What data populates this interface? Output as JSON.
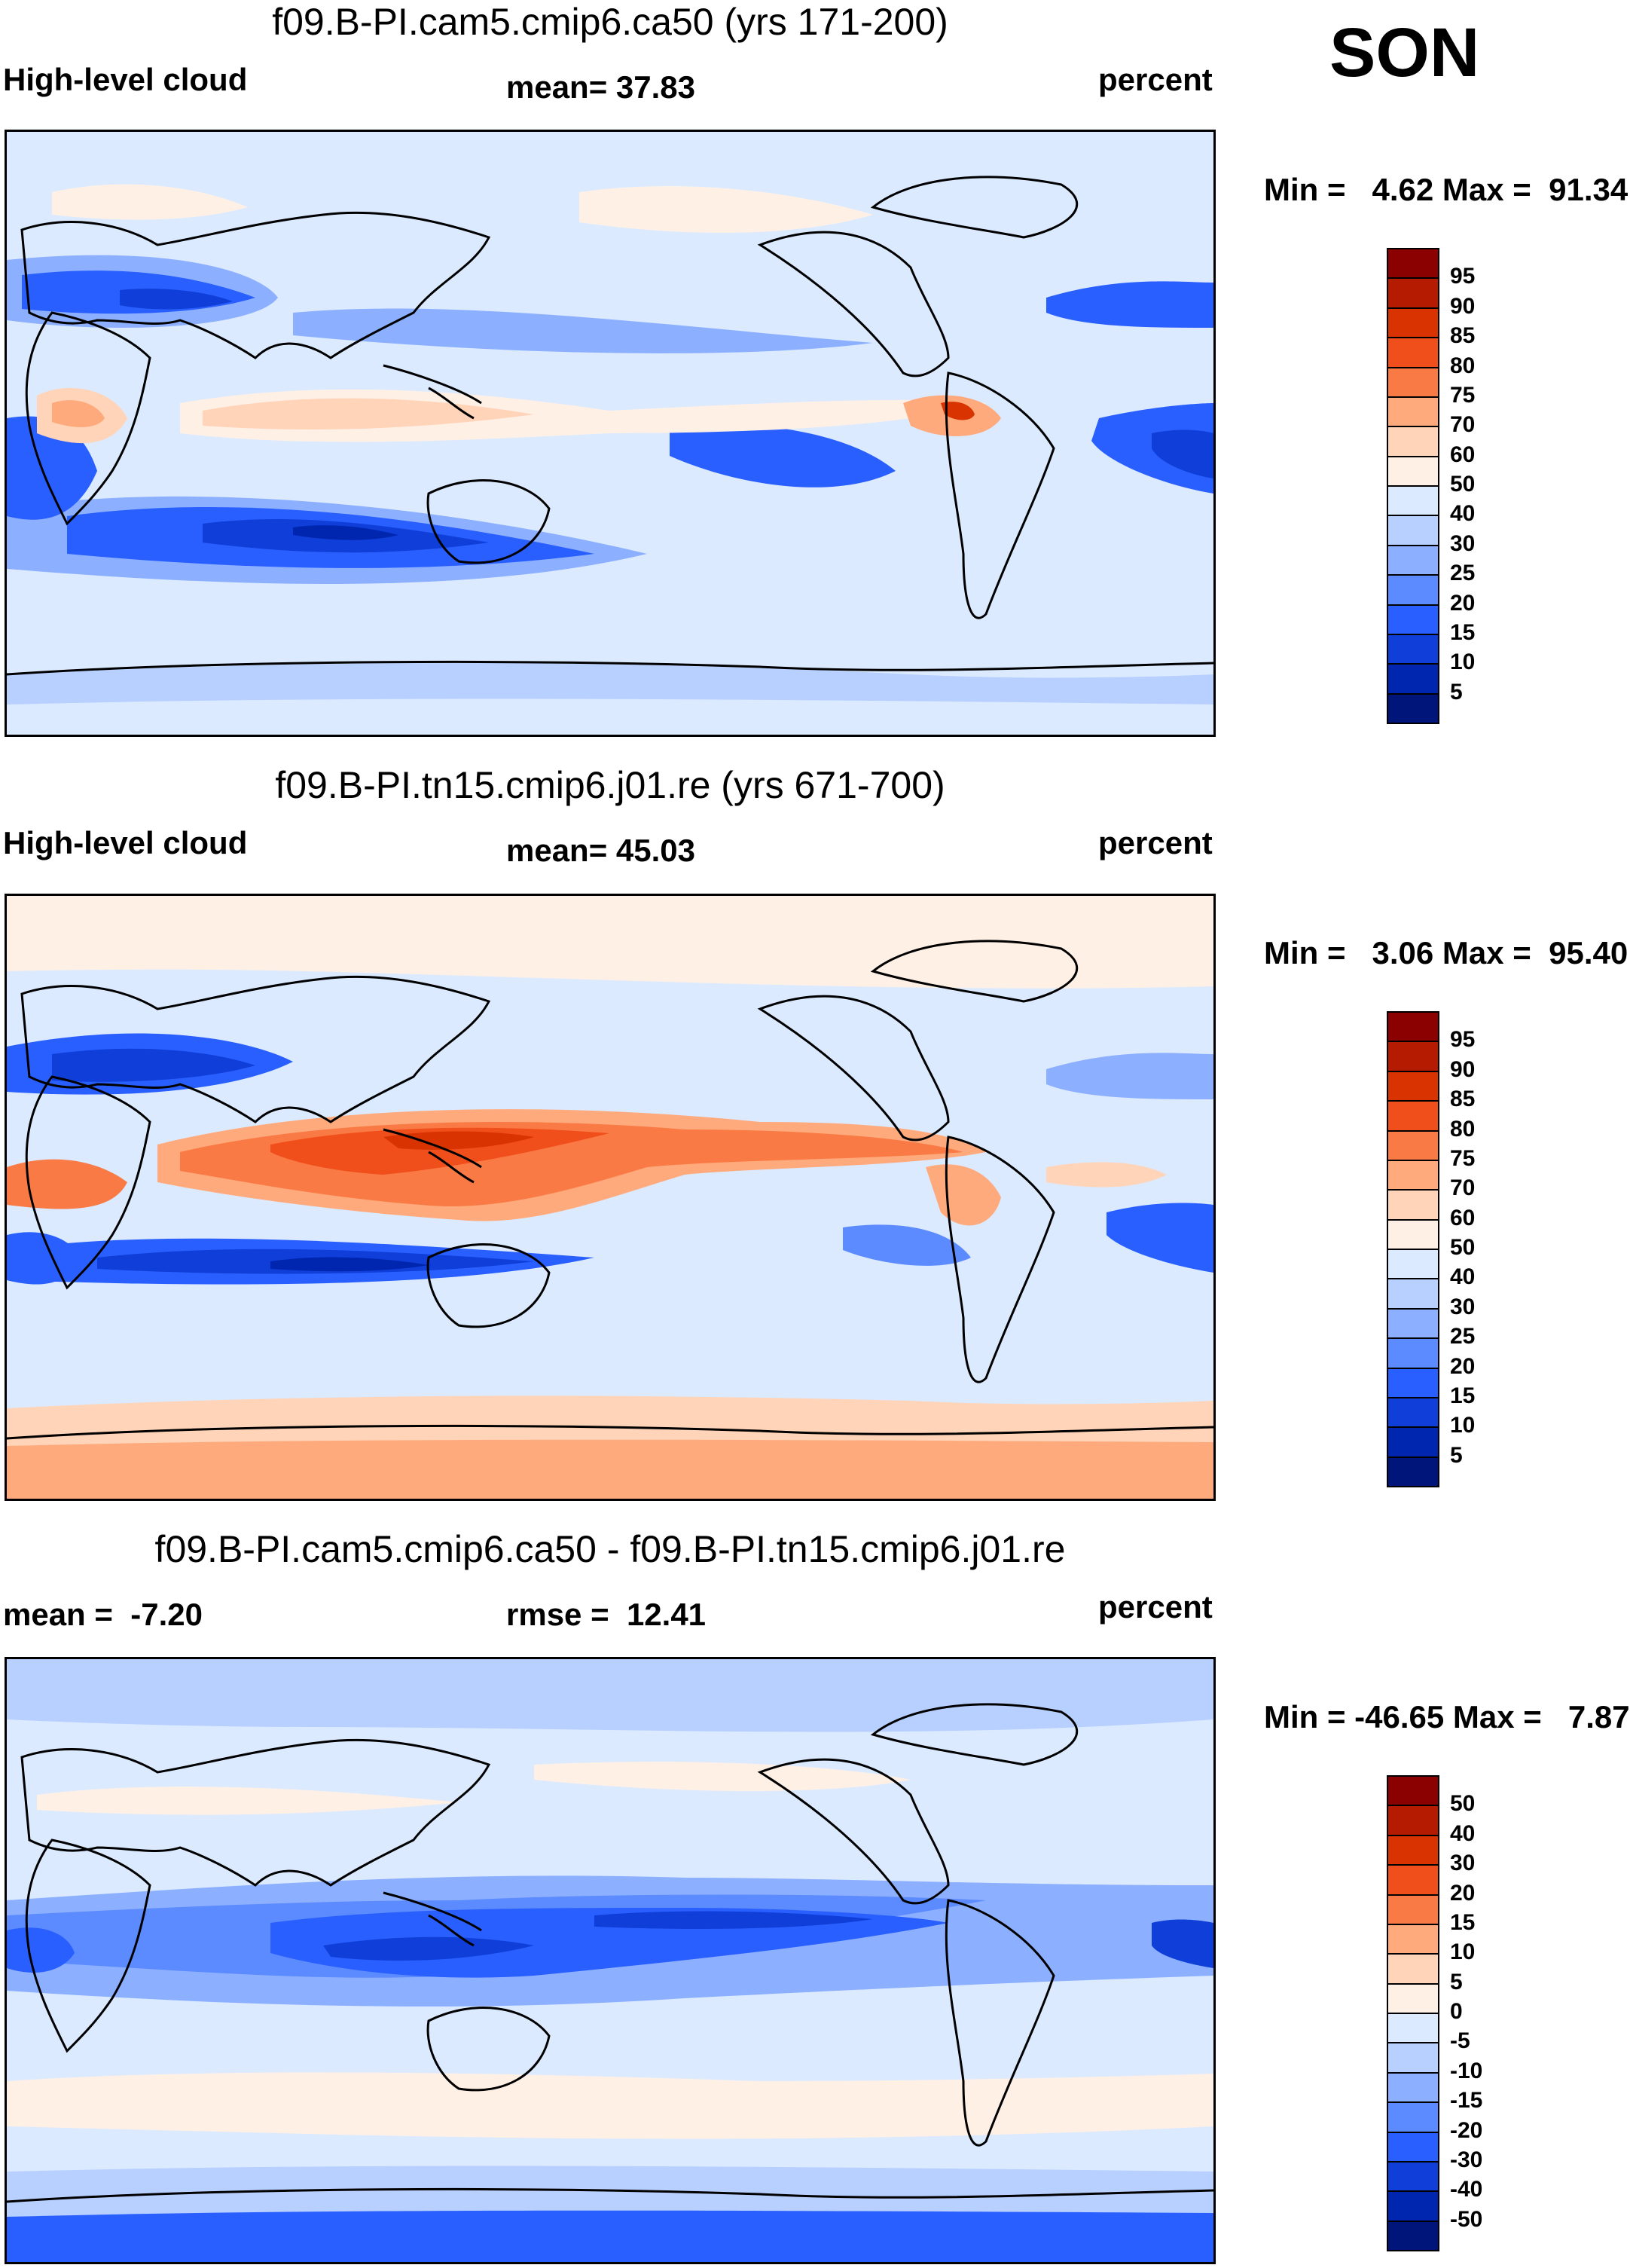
{
  "season": "SON",
  "panels": [
    {
      "title": "f09.B-PI.cam5.cmip6.ca50 (yrs 171-200)",
      "left_label": "High-level cloud",
      "center_label": "mean=  37.83",
      "right_label": "percent",
      "range_label": "Min =   4.62 Max =  91.34",
      "colorbar": {
        "labels": [
          "95",
          "90",
          "85",
          "80",
          "75",
          "70",
          "60",
          "50",
          "40",
          "30",
          "25",
          "20",
          "15",
          "10",
          "5"
        ],
        "colors": [
          "#8b0000",
          "#b41b00",
          "#d83300",
          "#f04e1b",
          "#fa7a45",
          "#ffaa7c",
          "#ffd4b8",
          "#fff0e6",
          "#dbeaff",
          "#b8d0ff",
          "#8cb0ff",
          "#5c8aff",
          "#2a5fff",
          "#0f3fd8",
          "#0026b0",
          "#00157a"
        ]
      },
      "map_variant": "cam5"
    },
    {
      "title": "f09.B-PI.tn15.cmip6.j01.re (yrs 671-700)",
      "left_label": "High-level cloud",
      "center_label": "mean=  45.03",
      "right_label": "percent",
      "range_label": "Min =   3.06 Max =  95.40",
      "colorbar": {
        "labels": [
          "95",
          "90",
          "85",
          "80",
          "75",
          "70",
          "60",
          "50",
          "40",
          "30",
          "25",
          "20",
          "15",
          "10",
          "5"
        ],
        "colors": [
          "#8b0000",
          "#b41b00",
          "#d83300",
          "#f04e1b",
          "#fa7a45",
          "#ffaa7c",
          "#ffd4b8",
          "#fff0e6",
          "#dbeaff",
          "#b8d0ff",
          "#8cb0ff",
          "#5c8aff",
          "#2a5fff",
          "#0f3fd8",
          "#0026b0",
          "#00157a"
        ]
      },
      "map_variant": "tn15"
    },
    {
      "title": "f09.B-PI.cam5.cmip6.ca50 - f09.B-PI.tn15.cmip6.j01.re",
      "left_label": "mean =  -7.20",
      "center_label": "rmse =  12.41",
      "right_label": "percent",
      "range_label": "Min = -46.65 Max =   7.87",
      "colorbar": {
        "labels": [
          "50",
          "40",
          "30",
          "20",
          "15",
          "10",
          "5",
          "0",
          "-5",
          "-10",
          "-15",
          "-20",
          "-30",
          "-40",
          "-50"
        ],
        "colors": [
          "#8b0000",
          "#b41b00",
          "#d83300",
          "#f04e1b",
          "#fa7a45",
          "#ffaa7c",
          "#ffd4b8",
          "#fff0e6",
          "#dbeaff",
          "#b8d0ff",
          "#8cb0ff",
          "#5c8aff",
          "#2a5fff",
          "#0f3fd8",
          "#0026b0",
          "#00157a"
        ]
      },
      "map_variant": "diff"
    }
  ]
}
